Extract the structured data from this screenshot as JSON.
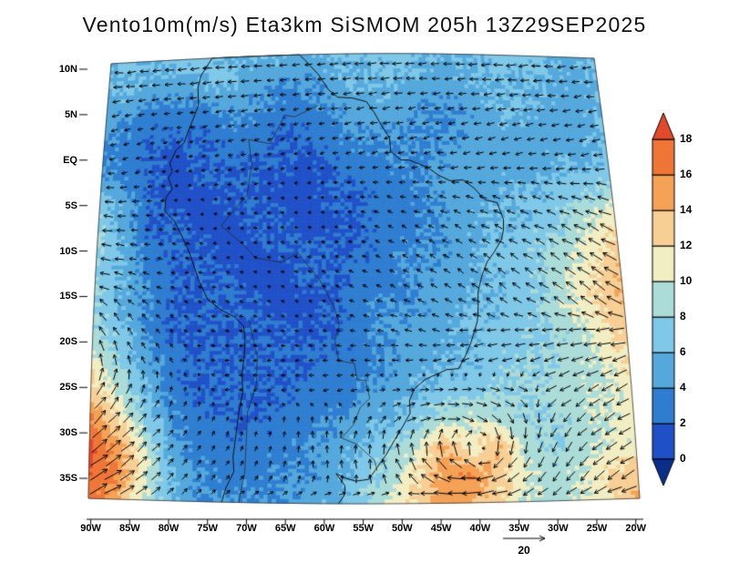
{
  "chart": {
    "title": "Vento10m(m/s) Eta3km SiSMOM 205h 13Z29SEP2025",
    "ref_vector_label": "20"
  },
  "chart_data": {
    "type": "heatmap",
    "subtype": "wind-speed-field-with-vectors",
    "title": "Vento10m(m/s) Eta3km SiSMOM 205h 13Z29SEP2025",
    "variable": "Vento 10m",
    "units": "m/s",
    "model": "Eta3km SiSMOM",
    "forecast_hour": "205h",
    "valid_time": "13Z29SEP2025",
    "reference_vector": 20,
    "lat_ticks": [
      "10N",
      "5N",
      "EQ",
      "5S",
      "10S",
      "15S",
      "20S",
      "25S",
      "30S",
      "35S"
    ],
    "lat_tick_values": [
      10,
      5,
      0,
      -5,
      -10,
      -15,
      -20,
      -25,
      -30,
      -35
    ],
    "lon_ticks": [
      "90W",
      "85W",
      "80W",
      "75W",
      "70W",
      "65W",
      "60W",
      "55W",
      "50W",
      "45W",
      "40W",
      "35W",
      "30W",
      "25W",
      "20W"
    ],
    "lon_tick_values": [
      -90,
      -85,
      -80,
      -75,
      -70,
      -65,
      -60,
      -55,
      -50,
      -45,
      -40,
      -35,
      -30,
      -25,
      -20
    ],
    "domain": {
      "lon_min": -90.3,
      "lon_max": -19.5,
      "lat_max": 10.6,
      "lat_min": -37.2
    },
    "colorbar": {
      "levels": [
        0,
        2,
        4,
        6,
        8,
        10,
        12,
        14,
        16,
        18
      ],
      "tick_labels": [
        "18",
        "16",
        "14",
        "12",
        "10",
        "8",
        "6",
        "4",
        "2",
        "0"
      ],
      "color_below": "#0a2e8c",
      "segments": [
        "#2050c8",
        "#2e7dd1",
        "#54a8dc",
        "#7fc8e8",
        "#abdcd8",
        "#f2eec3",
        "#f7cf95",
        "#f5a156",
        "#ef7637"
      ],
      "color_above": "#e5492b"
    },
    "grid": {
      "cols": 21,
      "rows": 17,
      "speed": [
        [
          6,
          6,
          6,
          7,
          7,
          6,
          6,
          6,
          5,
          6,
          6,
          7,
          7,
          6,
          6,
          6,
          7,
          7,
          6,
          6,
          6
        ],
        [
          6,
          6,
          5,
          5,
          6,
          6,
          5,
          4,
          4,
          5,
          6,
          6,
          6,
          5,
          5,
          6,
          6,
          6,
          6,
          5,
          6
        ],
        [
          5,
          4,
          3,
          3,
          3,
          4,
          4,
          3,
          3,
          4,
          5,
          5,
          5,
          4,
          4,
          5,
          6,
          6,
          5,
          5,
          6
        ],
        [
          4,
          3,
          2,
          2,
          2,
          3,
          3,
          2,
          2,
          3,
          4,
          4,
          4,
          4,
          4,
          5,
          5,
          5,
          5,
          5,
          6
        ],
        [
          4,
          3,
          2,
          1,
          2,
          2,
          2,
          2,
          1,
          2,
          3,
          3,
          4,
          4,
          5,
          5,
          5,
          5,
          6,
          6,
          7
        ],
        [
          7,
          5,
          2,
          1,
          1,
          2,
          2,
          1,
          1,
          2,
          2,
          3,
          3,
          4,
          5,
          5,
          6,
          6,
          7,
          8,
          9
        ],
        [
          8,
          5,
          2,
          2,
          1,
          1,
          2,
          2,
          1,
          1,
          2,
          3,
          3,
          4,
          5,
          6,
          6,
          7,
          8,
          10,
          12
        ],
        [
          8,
          6,
          3,
          2,
          2,
          1,
          1,
          2,
          2,
          2,
          2,
          3,
          4,
          4,
          5,
          6,
          7,
          8,
          9,
          11,
          13
        ],
        [
          8,
          6,
          4,
          2,
          2,
          2,
          1,
          1,
          2,
          2,
          3,
          3,
          4,
          5,
          5,
          6,
          7,
          8,
          10,
          12,
          14
        ],
        [
          8,
          6,
          4,
          2,
          2,
          2,
          2,
          1,
          1,
          2,
          3,
          4,
          4,
          5,
          6,
          6,
          7,
          8,
          10,
          12,
          14
        ],
        [
          9,
          7,
          4,
          2,
          2,
          2,
          2,
          2,
          2,
          2,
          3,
          4,
          5,
          5,
          6,
          7,
          7,
          8,
          9,
          11,
          13
        ],
        [
          11,
          8,
          5,
          3,
          2,
          2,
          2,
          2,
          2,
          3,
          3,
          4,
          5,
          6,
          6,
          7,
          8,
          8,
          9,
          10,
          12
        ],
        [
          13,
          10,
          6,
          3,
          2,
          2,
          2,
          2,
          3,
          3,
          4,
          5,
          6,
          7,
          7,
          8,
          8,
          9,
          9,
          10,
          11
        ],
        [
          16,
          12,
          8,
          4,
          3,
          2,
          2,
          3,
          3,
          4,
          5,
          6,
          7,
          9,
          10,
          9,
          8,
          8,
          9,
          10,
          11
        ],
        [
          18,
          15,
          10,
          5,
          3,
          3,
          3,
          3,
          4,
          5,
          6,
          8,
          10,
          14,
          11,
          14,
          9,
          8,
          9,
          10,
          11
        ],
        [
          18,
          16,
          11,
          6,
          4,
          3,
          3,
          4,
          4,
          5,
          7,
          9,
          12,
          15,
          16,
          13,
          10,
          9,
          10,
          12,
          13
        ],
        [
          17,
          15,
          10,
          6,
          4,
          4,
          4,
          4,
          5,
          6,
          8,
          10,
          13,
          15,
          14,
          12,
          10,
          9,
          10,
          12,
          14
        ]
      ],
      "dir_deg_math": [
        [
          185,
          185,
          185,
          185,
          185,
          185,
          185,
          185,
          185,
          185,
          185,
          185,
          185,
          185,
          185,
          185,
          185,
          185,
          185,
          185,
          185
        ],
        [
          185,
          185,
          185,
          185,
          185,
          185,
          185,
          185,
          185,
          185,
          185,
          185,
          185,
          185,
          185,
          185,
          185,
          185,
          185,
          185,
          185
        ],
        [
          190,
          190,
          190,
          190,
          190,
          190,
          190,
          190,
          190,
          190,
          190,
          190,
          190,
          190,
          190,
          190,
          190,
          190,
          190,
          190,
          190
        ],
        [
          195,
          195,
          195,
          195,
          195,
          195,
          195,
          195,
          195,
          195,
          195,
          195,
          195,
          195,
          195,
          195,
          195,
          195,
          195,
          195,
          195
        ],
        [
          190,
          190,
          190,
          190,
          190,
          190,
          190,
          190,
          190,
          190,
          190,
          190,
          190,
          190,
          190,
          190,
          190,
          190,
          190,
          190,
          190
        ],
        [
          180,
          180,
          180,
          180,
          180,
          180,
          180,
          180,
          180,
          180,
          180,
          165,
          165,
          165,
          165,
          165,
          165,
          165,
          165,
          165,
          165
        ],
        [
          175,
          175,
          175,
          175,
          175,
          175,
          175,
          175,
          175,
          175,
          175,
          155,
          155,
          155,
          155,
          155,
          155,
          155,
          155,
          155,
          155
        ],
        [
          170,
          170,
          170,
          170,
          170,
          170,
          170,
          170,
          170,
          170,
          170,
          150,
          150,
          150,
          150,
          150,
          150,
          150,
          150,
          150,
          150
        ],
        [
          165,
          165,
          165,
          165,
          165,
          165,
          165,
          165,
          155,
          155,
          155,
          155,
          155,
          145,
          145,
          145,
          145,
          145,
          145,
          145,
          145
        ],
        [
          135,
          135,
          135,
          140,
          160,
          160,
          160,
          160,
          160,
          160,
          160,
          160,
          160,
          160,
          160,
          150,
          150,
          150,
          150,
          150,
          150
        ],
        [
          120,
          120,
          130,
          140,
          170,
          170,
          170,
          170,
          170,
          170,
          170,
          170,
          170,
          170,
          190,
          190,
          190,
          190,
          190,
          190,
          190
        ],
        [
          90,
          100,
          110,
          120,
          180,
          180,
          180,
          180,
          180,
          180,
          180,
          180,
          180,
          200,
          200,
          200,
          200,
          200,
          200,
          200,
          200
        ],
        [
          60,
          60,
          70,
          80,
          90,
          190,
          190,
          190,
          190,
          190,
          190,
          10,
          5,
          0,
          0,
          350,
          340,
          210,
          210,
          210,
          210
        ],
        [
          45,
          45,
          50,
          55,
          60,
          80,
          90,
          90,
          90,
          80,
          60,
          45,
          20,
          0,
          340,
          315,
          290,
          240,
          220,
          215,
          210
        ],
        [
          40,
          40,
          45,
          50,
          55,
          60,
          70,
          80,
          85,
          90,
          90,
          90,
          95,
          100,
          90,
          270,
          260,
          240,
          225,
          215,
          205
        ],
        [
          35,
          35,
          40,
          45,
          50,
          55,
          60,
          70,
          80,
          90,
          100,
          120,
          135,
          160,
          180,
          205,
          225,
          235,
          230,
          220,
          210
        ],
        [
          30,
          30,
          35,
          40,
          45,
          25,
          15,
          10,
          5,
          0,
          355,
          350,
          200,
          190,
          185,
          190,
          200,
          210,
          205,
          200,
          195
        ]
      ]
    },
    "coastlines": [
      [
        [
          -77.0,
          8.8
        ],
        [
          -75.5,
          10.7
        ],
        [
          -74.8,
          11.1
        ],
        [
          -71.7,
          12.4
        ],
        [
          -70.2,
          11.6
        ],
        [
          -68.2,
          10.9
        ],
        [
          -66.1,
          10.6
        ],
        [
          -64.2,
          10.7
        ],
        [
          -62.7,
          10.7
        ],
        [
          -62.0,
          10.1
        ],
        [
          -61.0,
          9.3
        ],
        [
          -60.0,
          8.5
        ],
        [
          -58.5,
          6.8
        ],
        [
          -57.2,
          6.0
        ],
        [
          -55.1,
          5.9
        ],
        [
          -53.1,
          5.5
        ],
        [
          -52.0,
          4.3
        ],
        [
          -51.1,
          3.0
        ],
        [
          -50.0,
          1.7
        ],
        [
          -49.9,
          0.2
        ],
        [
          -48.5,
          -0.7
        ],
        [
          -47.4,
          -0.7
        ],
        [
          -44.8,
          -1.5
        ],
        [
          -43.4,
          -2.3
        ],
        [
          -41.8,
          -2.9
        ],
        [
          -40.0,
          -2.8
        ],
        [
          -38.5,
          -3.7
        ],
        [
          -37.2,
          -4.9
        ],
        [
          -35.5,
          -5.2
        ],
        [
          -34.8,
          -7.0
        ],
        [
          -34.9,
          -8.1
        ],
        [
          -35.3,
          -9.2
        ],
        [
          -36.4,
          -10.5
        ],
        [
          -37.4,
          -11.5
        ],
        [
          -38.2,
          -12.9
        ],
        [
          -38.9,
          -14.7
        ],
        [
          -39.0,
          -16.3
        ],
        [
          -39.2,
          -17.8
        ],
        [
          -39.7,
          -19.0
        ],
        [
          -40.3,
          -20.3
        ],
        [
          -41.0,
          -21.5
        ],
        [
          -42.0,
          -22.9
        ],
        [
          -43.6,
          -23.0
        ],
        [
          -44.7,
          -23.4
        ],
        [
          -46.4,
          -24.0
        ],
        [
          -47.9,
          -25.0
        ],
        [
          -48.6,
          -26.2
        ],
        [
          -48.6,
          -27.6
        ],
        [
          -49.6,
          -29.0
        ],
        [
          -50.7,
          -30.4
        ],
        [
          -51.8,
          -31.9
        ],
        [
          -53.4,
          -33.7
        ],
        [
          -54.2,
          -34.6
        ],
        [
          -55.9,
          -34.8
        ],
        [
          -57.1,
          -34.5
        ],
        [
          -58.4,
          -34.0
        ],
        [
          -57.3,
          -35.3
        ],
        [
          -57.4,
          -36.3
        ],
        [
          -58.2,
          -37.2
        ]
      ],
      [
        [
          -77.0,
          8.8
        ],
        [
          -77.4,
          7.5
        ],
        [
          -77.2,
          5.6
        ],
        [
          -78.6,
          2.6
        ],
        [
          -79.0,
          1.6
        ],
        [
          -80.1,
          0.8
        ],
        [
          -80.9,
          -0.6
        ],
        [
          -80.5,
          -1.5
        ],
        [
          -81.0,
          -2.2
        ],
        [
          -80.4,
          -3.4
        ],
        [
          -81.2,
          -4.3
        ],
        [
          -81.3,
          -5.8
        ],
        [
          -79.9,
          -6.9
        ],
        [
          -78.9,
          -8.4
        ],
        [
          -77.7,
          -10.4
        ],
        [
          -76.3,
          -13.5
        ],
        [
          -75.1,
          -15.4
        ],
        [
          -73.4,
          -16.5
        ],
        [
          -71.5,
          -17.3
        ],
        [
          -70.3,
          -18.3
        ],
        [
          -70.1,
          -19.6
        ],
        [
          -70.2,
          -21.4
        ],
        [
          -70.5,
          -23.5
        ],
        [
          -70.4,
          -25.4
        ],
        [
          -70.9,
          -27.3
        ],
        [
          -71.3,
          -29.9
        ],
        [
          -71.7,
          -32.3
        ],
        [
          -71.6,
          -33.9
        ],
        [
          -72.6,
          -35.6
        ],
        [
          -73.2,
          -37.2
        ]
      ]
    ],
    "borders": [
      [
        [
          -69.6,
          -17.6
        ],
        [
          -68.5,
          -21.5
        ],
        [
          -68.6,
          -24.5
        ],
        [
          -69.8,
          -27.5
        ],
        [
          -70.0,
          -31.0
        ],
        [
          -70.2,
          -34.0
        ],
        [
          -71.0,
          -37.2
        ]
      ],
      [
        [
          -60.0,
          5.2
        ],
        [
          -63.4,
          4.0
        ],
        [
          -64.8,
          4.2
        ],
        [
          -66.9,
          1.2
        ],
        [
          -69.9,
          1.7
        ],
        [
          -69.4,
          -1.0
        ],
        [
          -70.0,
          -4.2
        ],
        [
          -73.5,
          -7.5
        ],
        [
          -70.5,
          -9.5
        ],
        [
          -68.7,
          -11.0
        ],
        [
          -65.3,
          -11.5
        ],
        [
          -63.0,
          -10.5
        ],
        [
          -60.2,
          -13.3
        ],
        [
          -58.2,
          -16.3
        ],
        [
          -57.6,
          -18.2
        ],
        [
          -58.2,
          -19.8
        ],
        [
          -57.8,
          -22.0
        ],
        [
          -55.7,
          -22.3
        ],
        [
          -55.4,
          -24.0
        ],
        [
          -54.3,
          -24.1
        ],
        [
          -53.8,
          -26.0
        ],
        [
          -55.1,
          -27.0
        ],
        [
          -56.0,
          -28.8
        ],
        [
          -57.6,
          -30.2
        ],
        [
          -55.6,
          -30.9
        ],
        [
          -53.4,
          -32.6
        ],
        [
          -53.1,
          -33.7
        ]
      ]
    ]
  }
}
